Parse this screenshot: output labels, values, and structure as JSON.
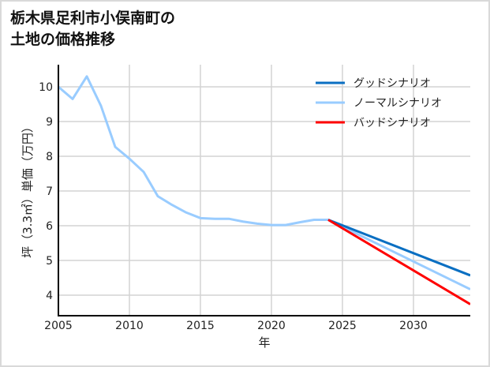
{
  "title_line1": "栃木県足利市小俣南町の",
  "title_line2": "土地の価格推移",
  "chart_data": {
    "type": "line",
    "title": "栃木県足利市小俣南町の土地の価格推移",
    "xlabel": "年",
    "ylabel": "坪（3.3㎡）単価（万円）",
    "xlim": [
      2005,
      2034
    ],
    "ylim": [
      3.4,
      10.6
    ],
    "x_ticks": [
      2005,
      2010,
      2015,
      2020,
      2025,
      2030
    ],
    "y_ticks": [
      4,
      5,
      6,
      7,
      8,
      9,
      10
    ],
    "grid": true,
    "legend_position": "upper right",
    "series": [
      {
        "name": "グッドシナリオ",
        "color": "#0a6fc2",
        "x": [
          2024,
          2034
        ],
        "values": [
          6.17,
          4.57
        ]
      },
      {
        "name": "ノーマルシナリオ",
        "color": "#99ccff",
        "x": [
          2005,
          2006,
          2007,
          2008,
          2009,
          2010,
          2011,
          2012,
          2013,
          2014,
          2015,
          2016,
          2017,
          2018,
          2019,
          2020,
          2021,
          2022,
          2023,
          2024,
          2034
        ],
        "values": [
          10.0,
          9.65,
          10.3,
          9.45,
          8.27,
          7.93,
          7.55,
          6.85,
          6.6,
          6.38,
          6.22,
          6.2,
          6.2,
          6.12,
          6.06,
          6.02,
          6.02,
          6.1,
          6.17,
          6.17,
          4.17
        ]
      },
      {
        "name": "バッドシナリオ",
        "color": "#ff0000",
        "x": [
          2024,
          2034
        ],
        "values": [
          6.17,
          3.74
        ]
      }
    ]
  }
}
